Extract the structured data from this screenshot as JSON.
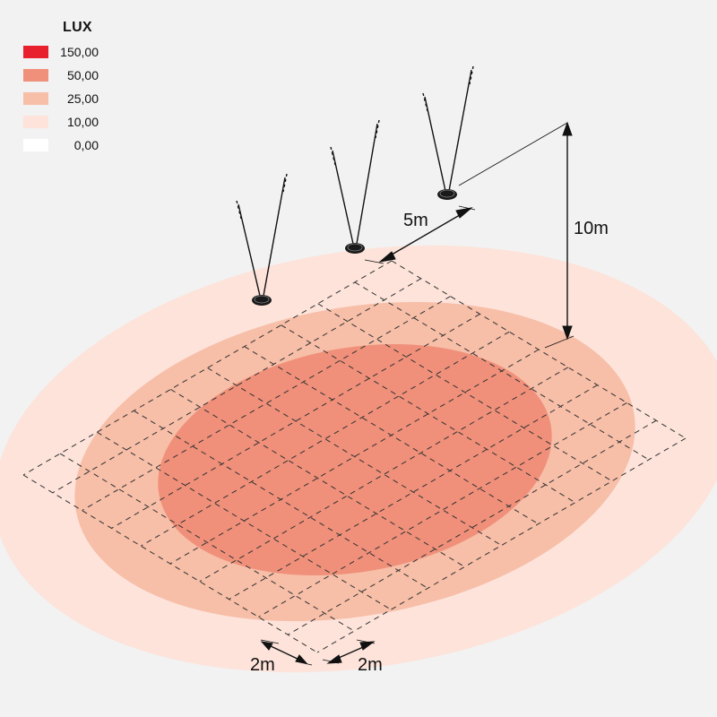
{
  "legend": {
    "title": "LUX",
    "items": [
      {
        "label": "150,00",
        "color": "#e8202e"
      },
      {
        "label": "50,00",
        "color": "#f0907a"
      },
      {
        "label": "25,00",
        "color": "#f7bea8"
      },
      {
        "label": "10,00",
        "color": "#fde3da"
      },
      {
        "label": "0,00",
        "color": "#ffffff"
      }
    ]
  },
  "dimensions": {
    "height_label": "10m",
    "spacing_label": "5m",
    "grid_label_left": "2m",
    "grid_label_right": "2m"
  },
  "zones": {
    "outer_color": "#fde3da",
    "mid_color": "#f7bea8",
    "inner_color": "#f0907a"
  },
  "lights": [
    {
      "name": "light-fixture-1"
    },
    {
      "name": "light-fixture-2"
    },
    {
      "name": "light-fixture-3"
    }
  ]
}
